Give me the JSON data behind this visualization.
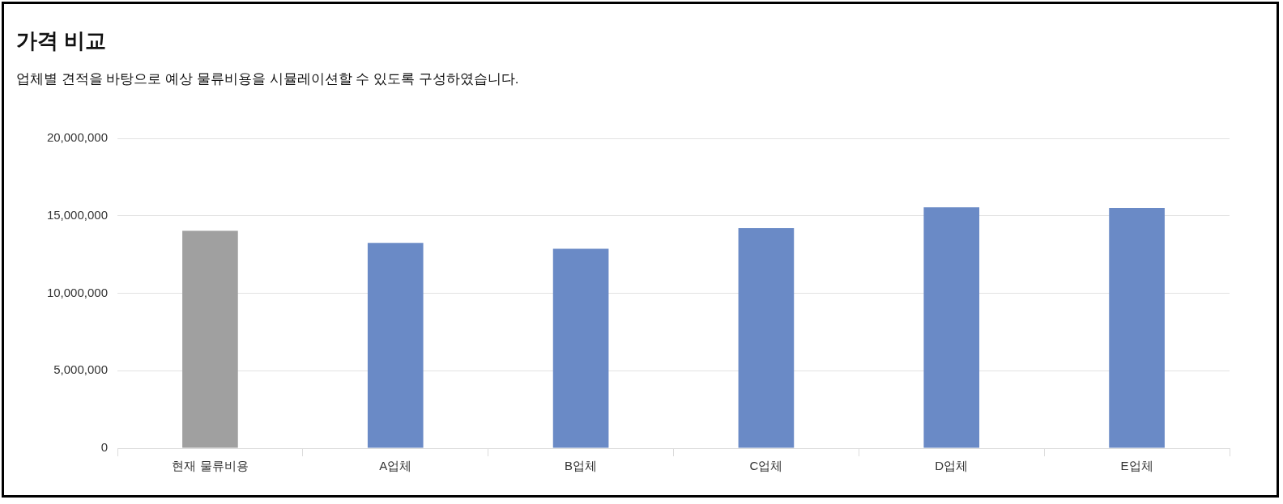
{
  "chart_data": {
    "type": "bar",
    "title": "가격 비교",
    "subtitle": "업체별 견적을 바탕으로 예상 물류비용을 시뮬레이션할 수 있도록 구성하였습니다.",
    "categories": [
      "현재 물류비용",
      "A업체",
      "B업체",
      "C업체",
      "D업체",
      "E업체"
    ],
    "values": [
      14030000,
      13250000,
      12870000,
      14210000,
      15550000,
      15510000
    ],
    "colors": [
      "#a0a0a0",
      "#6a8ac6",
      "#6a8ac6",
      "#6a8ac6",
      "#6a8ac6",
      "#6a8ac6"
    ],
    "ylim": [
      0,
      20000000
    ],
    "yticks": [
      0,
      {
        "value": 5000000,
        "label": "5,000,000"
      },
      {
        "value": 10000000,
        "label": "10,000,000"
      },
      {
        "value": 15000000,
        "label": "15,000,000"
      },
      {
        "value": 20000000,
        "label": "20,000,000"
      }
    ],
    "grid": "y"
  }
}
